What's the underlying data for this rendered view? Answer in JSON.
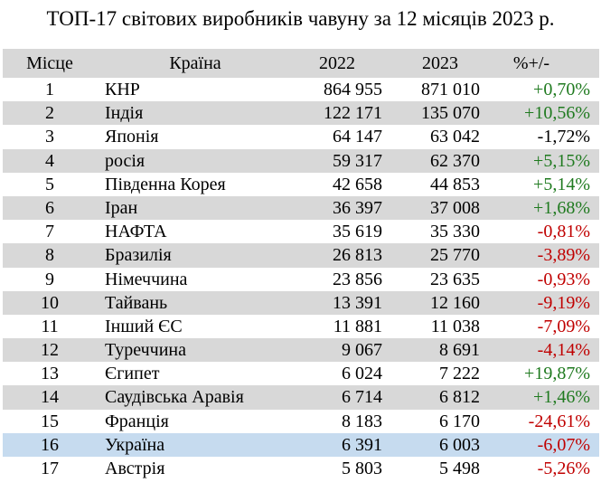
{
  "title": "ТОП-17 світових виробників чавуну за 12 місяців 2023 р.",
  "headers": {
    "place": "Місце",
    "country": "Країна",
    "y2022": "2022",
    "y2023": "2023",
    "change": "%+/-"
  },
  "colors": {
    "row_shade": "#d8d8d8",
    "highlight": "#c6dbef",
    "positive": "#1f7a1f",
    "negative": "#c00000",
    "neutral": "#000000"
  },
  "rows": [
    {
      "place": "1",
      "country": "КНР",
      "y2022": "864 955",
      "y2023": "871 010",
      "change": "+0,70%",
      "trend": "pos"
    },
    {
      "place": "2",
      "country": "Індія",
      "y2022": "122 171",
      "y2023": "135 070",
      "change": "+10,56%",
      "trend": "pos"
    },
    {
      "place": "3",
      "country": "Японія",
      "y2022": "64 147",
      "y2023": "63 042",
      "change": "-1,72%",
      "trend": "neu"
    },
    {
      "place": "4",
      "country": "росія",
      "y2022": "59 317",
      "y2023": "62 370",
      "change": "+5,15%",
      "trend": "pos"
    },
    {
      "place": "5",
      "country": "Південна Корея",
      "y2022": "42 658",
      "y2023": "44 853",
      "change": "+5,14%",
      "trend": "pos"
    },
    {
      "place": "6",
      "country": "Іран",
      "y2022": "36 397",
      "y2023": "37 008",
      "change": "+1,68%",
      "trend": "pos"
    },
    {
      "place": "7",
      "country": "НАФТА",
      "y2022": "35 619",
      "y2023": "35 330",
      "change": "-0,81%",
      "trend": "neg"
    },
    {
      "place": "8",
      "country": "Бразилія",
      "y2022": "26 813",
      "y2023": "25 770",
      "change": "-3,89%",
      "trend": "neg"
    },
    {
      "place": "9",
      "country": "Німеччина",
      "y2022": "23 856",
      "y2023": "23 635",
      "change": "-0,93%",
      "trend": "neg"
    },
    {
      "place": "10",
      "country": "Тайвань",
      "y2022": "13 391",
      "y2023": "12 160",
      "change": "-9,19%",
      "trend": "neg"
    },
    {
      "place": "11",
      "country": "Інший ЄС",
      "y2022": "11 881",
      "y2023": "11 038",
      "change": "-7,09%",
      "trend": "neg"
    },
    {
      "place": "12",
      "country": "Туреччина",
      "y2022": "9 067",
      "y2023": "8 691",
      "change": "-4,14%",
      "trend": "neg"
    },
    {
      "place": "13",
      "country": "Єгипет",
      "y2022": "6 024",
      "y2023": "7 222",
      "change": "+19,87%",
      "trend": "pos"
    },
    {
      "place": "14",
      "country": "Саудівська Аравія",
      "y2022": "6 714",
      "y2023": "6 812",
      "change": "+1,46%",
      "trend": "pos"
    },
    {
      "place": "15",
      "country": "Франція",
      "y2022": "8 183",
      "y2023": "6 170",
      "change": "-24,61%",
      "trend": "neg"
    },
    {
      "place": "16",
      "country": "Україна",
      "y2022": "6 391",
      "y2023": "6 003",
      "change": "-6,07%",
      "trend": "neg",
      "highlight": true
    },
    {
      "place": "17",
      "country": "Австрія",
      "y2022": "5 803",
      "y2023": "5 498",
      "change": "-5,26%",
      "trend": "neg"
    }
  ]
}
